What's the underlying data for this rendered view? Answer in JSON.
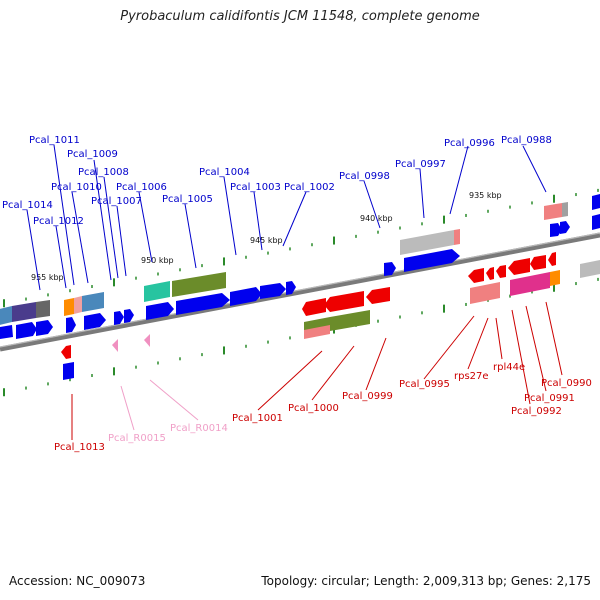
{
  "title": "Pyrobaculum calidifontis JCM 11548, complete genome",
  "footer": {
    "accession": "Accession: NC_009073",
    "summary": "Topology: circular; Length: 2,009,313 bp; Genes: 2,175"
  },
  "colors": {
    "forward_label": "#0000cc",
    "reverse_label": "#cc0000",
    "rna_label": "#e879b0",
    "blue_gene": "#0000ee",
    "red_gene": "#ee0000",
    "tick": "#2a8a2a",
    "backbone": "#808080"
  },
  "scale_labels": [
    "935 kbp",
    "940 kbp",
    "945 kbp",
    "950 kbp",
    "955 kbp"
  ],
  "upper_labels": [
    "Pcal_1011",
    "Pcal_1009",
    "Pcal_1008",
    "Pcal_1010",
    "Pcal_1006",
    "Pcal_1007",
    "Pcal_1014",
    "Pcal_1012",
    "Pcal_1005",
    "Pcal_1004",
    "Pcal_1003",
    "Pcal_1002",
    "Pcal_0998",
    "Pcal_0997",
    "Pcal_0996",
    "Pcal_0988"
  ],
  "lower_labels": [
    "Pcal_1013",
    "Pcal_R0015",
    "Pcal_R0014",
    "Pcal_1001",
    "Pcal_1000",
    "Pcal_0999",
    "Pcal_0995",
    "rps27e",
    "rpl44e",
    "Pcal_0990",
    "Pcal_0991",
    "Pcal_0992"
  ]
}
